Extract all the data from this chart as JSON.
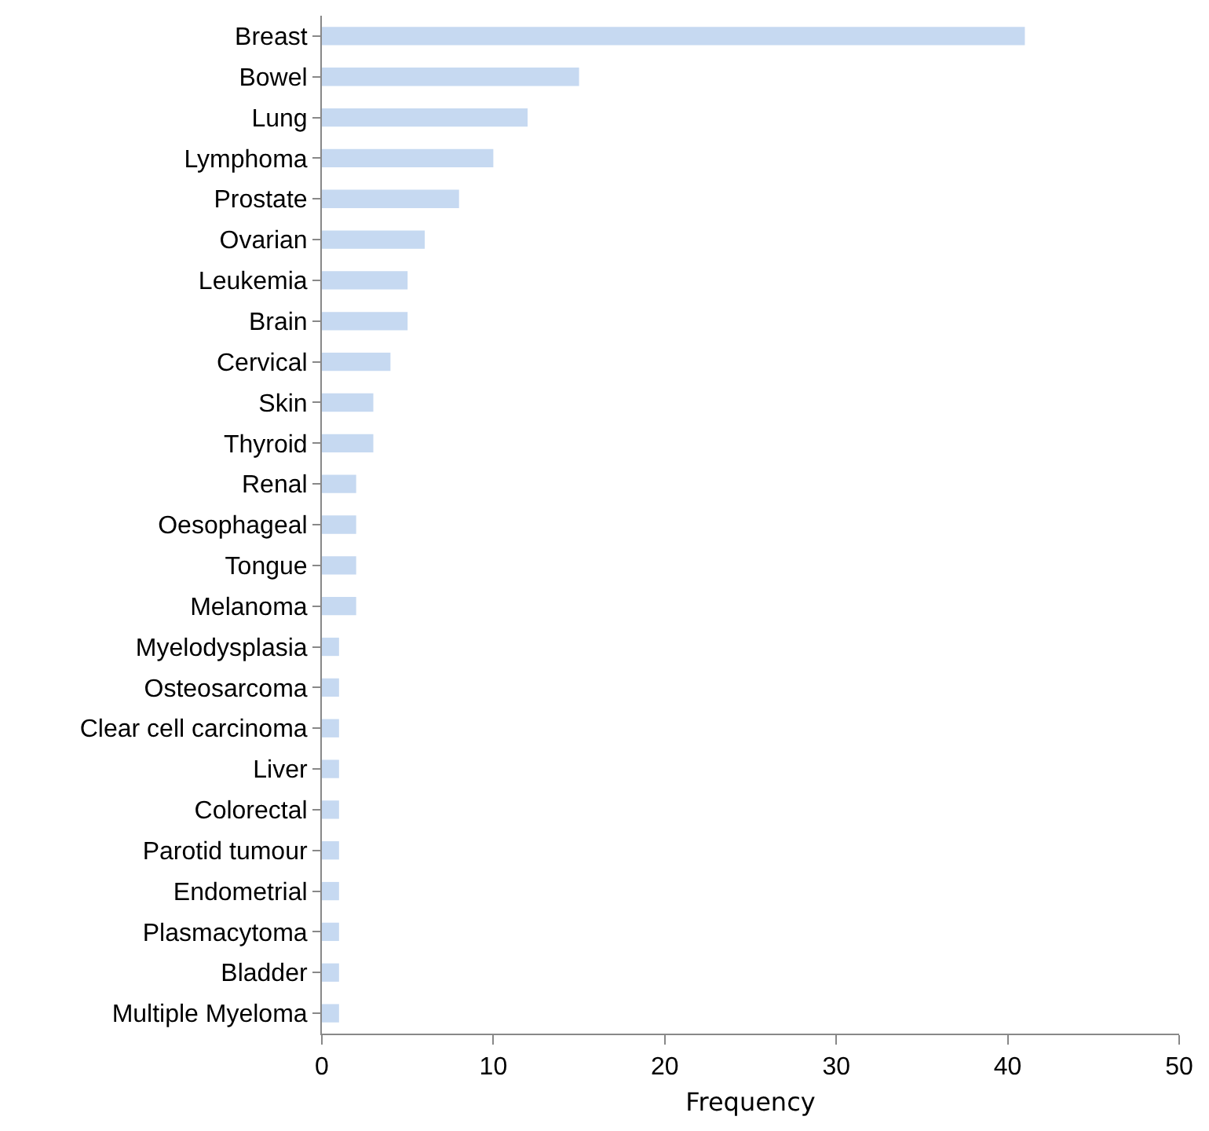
{
  "chart_data": {
    "type": "bar",
    "orientation": "horizontal",
    "xlabel": "Frequency",
    "categories": [
      "Breast",
      "Bowel",
      "Lung",
      "Lymphoma",
      "Prostate",
      "Ovarian",
      "Leukemia",
      "Brain",
      "Cervical",
      "Skin",
      "Thyroid",
      "Renal",
      "Oesophageal",
      "Tongue",
      "Melanoma",
      "Myelodysplasia",
      "Osteosarcoma",
      "Clear cell carcinoma",
      "Liver",
      "Colorectal",
      "Parotid tumour",
      "Endometrial",
      "Plasmacytoma",
      "Bladder",
      "Multiple Myeloma"
    ],
    "values": [
      41,
      15,
      12,
      10,
      8,
      6,
      5,
      5,
      4,
      3,
      3,
      2,
      2,
      2,
      2,
      1,
      1,
      1,
      1,
      1,
      1,
      1,
      1,
      1,
      1
    ],
    "color": "#c6d9f1",
    "xlim": [
      0,
      50
    ],
    "xticks": [
      0,
      10,
      20,
      30,
      40,
      50
    ],
    "grid": false
  }
}
